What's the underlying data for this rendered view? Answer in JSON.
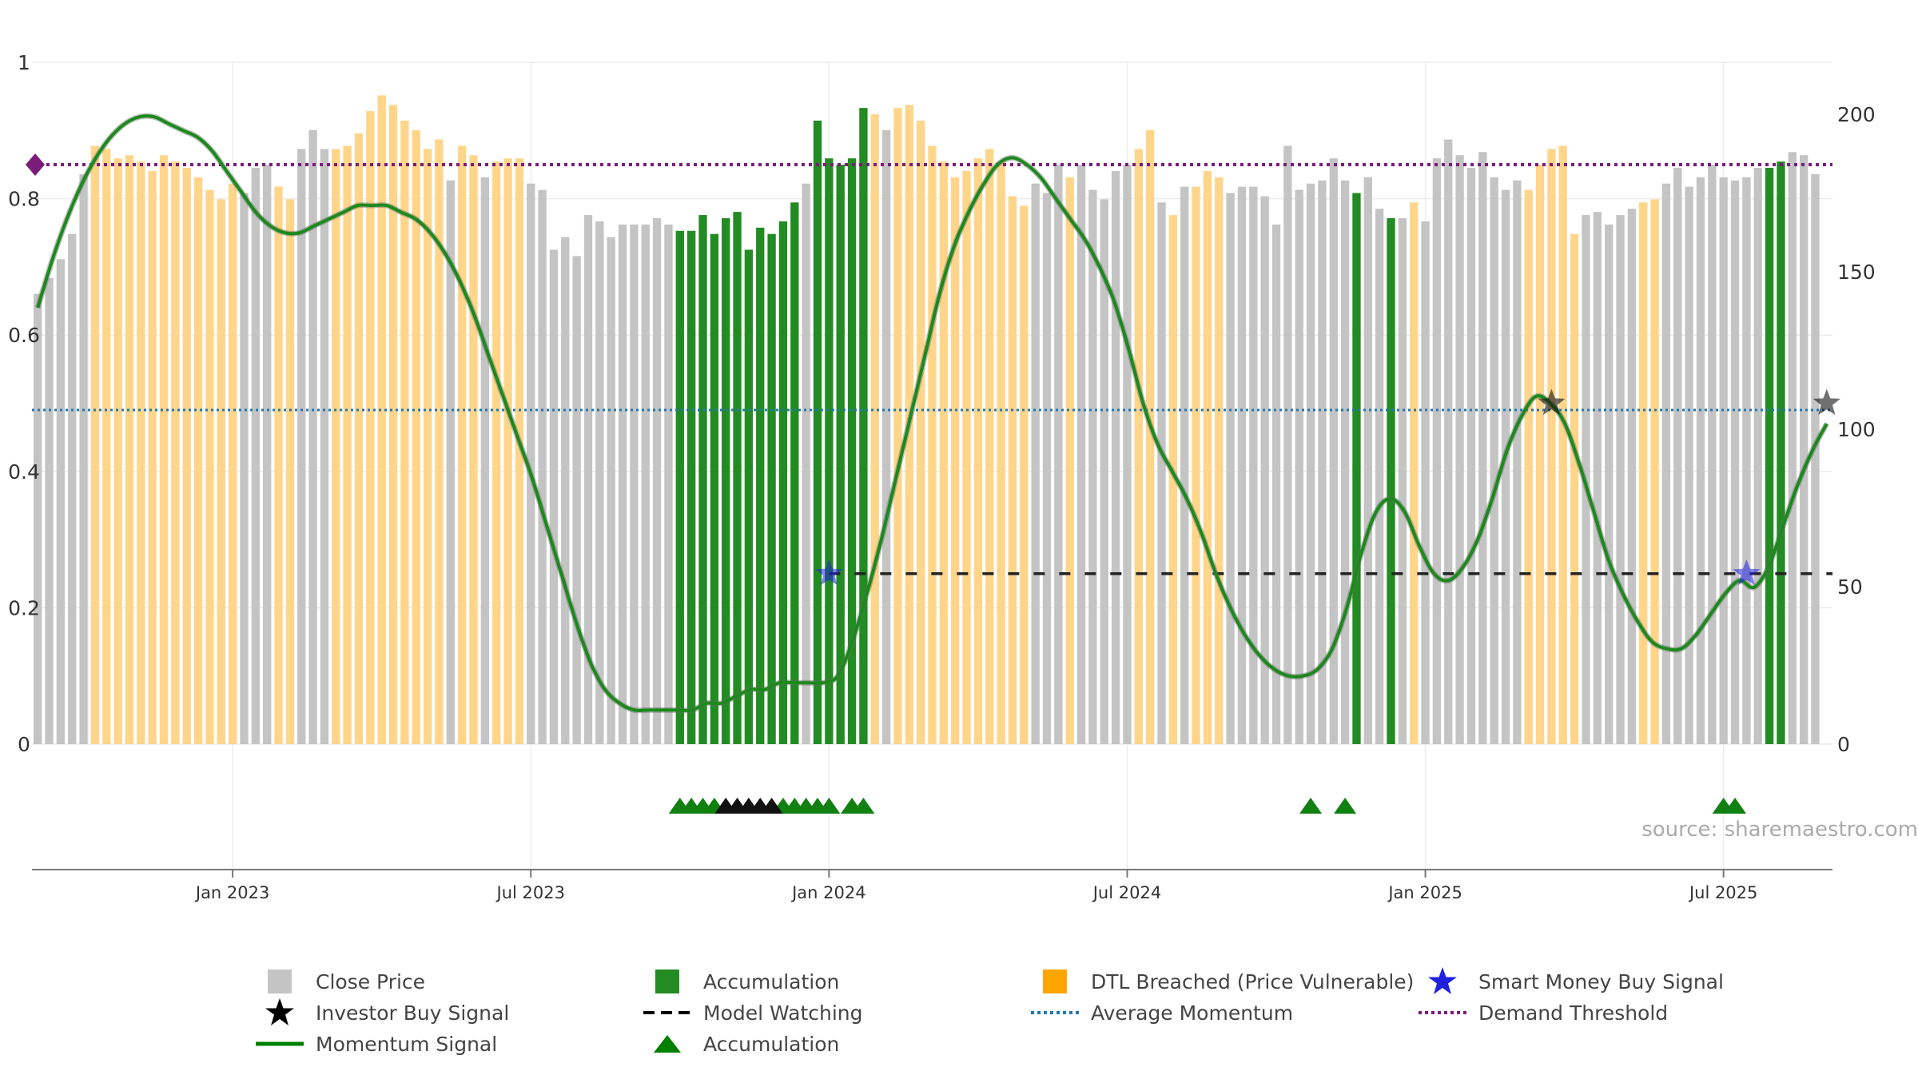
{
  "source_text": "source: sharemaestro.com",
  "colors": {
    "close": "#c4c4c4",
    "accumulation": "#228b22",
    "dtl": "#ffd58a",
    "momentum": "#1a8a1a",
    "momentum_shadow": "#6b6b6b",
    "average": "#1f77b4",
    "demand": "#7b1c7b",
    "watching": "#222222",
    "smart_money": "#2020e0",
    "investor": "#111111",
    "acc_marker": "#108010",
    "watch_marker": "#111111"
  },
  "legend": [
    {
      "label": "Close Price",
      "symbol": "square-gray"
    },
    {
      "label": "Accumulation",
      "symbol": "square-green"
    },
    {
      "label": "DTL Breached (Price Vulnerable)",
      "symbol": "square-orange"
    },
    {
      "label": "Smart Money Buy Signal",
      "symbol": "star-blue"
    },
    {
      "label": "Investor Buy Signal",
      "symbol": "star-black"
    },
    {
      "label": "Model Watching",
      "symbol": "dash-black"
    },
    {
      "label": "Average Momentum",
      "symbol": "dot-blue"
    },
    {
      "label": "Demand Threshold",
      "symbol": "dot-purple"
    },
    {
      "label": "Momentum Signal",
      "symbol": "line-green"
    },
    {
      "label": "Accumulation",
      "symbol": "triangle-green"
    }
  ],
  "chart_data": {
    "type": "bar",
    "left_axis": {
      "ticks": [
        "0",
        "0.2",
        "0.4",
        "0.6",
        "0.8",
        "1"
      ],
      "range": [
        0,
        1
      ]
    },
    "right_axis": {
      "ticks": [
        "0",
        "50",
        "100",
        "150",
        "200"
      ],
      "range": [
        0,
        200
      ]
    },
    "x_ticks": [
      "Jan 2023",
      "Jul 2023",
      "Jan 2024",
      "Jul 2024",
      "Jan 2025",
      "Jul 2025"
    ],
    "x_tick_weeks": [
      17,
      43,
      69,
      95,
      121,
      147
    ],
    "weeks": 157,
    "close": [
      143,
      148,
      154,
      162,
      181,
      190,
      189,
      186,
      187,
      185,
      182,
      187,
      185,
      183,
      180,
      176,
      173,
      178,
      175,
      183,
      184,
      177,
      173,
      189,
      195,
      189,
      189,
      190,
      194,
      201,
      206,
      203,
      198,
      195,
      189,
      192,
      179,
      190,
      187,
      180,
      185,
      186,
      186,
      178,
      176,
      157,
      161,
      155,
      168,
      166,
      161,
      165,
      165,
      165,
      167,
      165,
      163,
      163,
      168,
      162,
      167,
      169,
      157,
      164,
      162,
      166,
      172,
      178,
      198,
      186,
      184,
      186,
      202,
      200,
      195,
      202,
      203,
      198,
      190,
      185,
      180,
      182,
      186,
      189,
      185,
      174,
      171,
      178,
      175,
      184,
      180,
      184,
      176,
      173,
      182,
      184,
      189,
      195,
      172,
      168,
      177,
      177,
      182,
      180,
      175,
      177,
      177,
      174,
      165,
      190,
      176,
      178,
      179,
      186,
      179,
      175,
      180,
      170,
      167,
      167,
      172,
      166,
      186,
      192,
      187,
      183,
      188,
      180,
      176,
      179,
      176,
      184,
      189,
      190,
      162,
      168,
      169,
      165,
      168,
      170,
      172,
      173,
      178,
      183,
      177,
      180,
      184,
      180,
      179,
      180,
      183,
      183,
      185,
      188,
      187,
      181
    ],
    "bar_types": [
      "C",
      "C",
      "C",
      "C",
      "C",
      "D",
      "D",
      "D",
      "D",
      "D",
      "D",
      "D",
      "D",
      "D",
      "D",
      "D",
      "D",
      "D",
      "C",
      "C",
      "C",
      "D",
      "D",
      "C",
      "C",
      "C",
      "D",
      "D",
      "D",
      "D",
      "D",
      "D",
      "D",
      "D",
      "D",
      "D",
      "C",
      "D",
      "D",
      "C",
      "D",
      "D",
      "D",
      "C",
      "C",
      "C",
      "C",
      "C",
      "C",
      "C",
      "C",
      "C",
      "C",
      "C",
      "C",
      "C",
      "A",
      "A",
      "A",
      "A",
      "A",
      "A",
      "A",
      "A",
      "A",
      "A",
      "A",
      "C",
      "A",
      "A",
      "A",
      "A",
      "A",
      "D",
      "C",
      "D",
      "D",
      "D",
      "D",
      "D",
      "D",
      "D",
      "D",
      "D",
      "D",
      "D",
      "D",
      "C",
      "C",
      "C",
      "D",
      "C",
      "C",
      "C",
      "C",
      "C",
      "D",
      "D",
      "C",
      "D",
      "C",
      "D",
      "D",
      "D",
      "C",
      "C",
      "C",
      "C",
      "C",
      "C",
      "C",
      "C",
      "C",
      "C",
      "C",
      "A",
      "C",
      "C",
      "A",
      "C",
      "D",
      "C",
      "C",
      "C",
      "C",
      "C",
      "C",
      "C",
      "C",
      "C",
      "D",
      "D",
      "D",
      "D",
      "D",
      "C",
      "C",
      "C",
      "C",
      "C",
      "D",
      "D",
      "C",
      "C",
      "C",
      "C",
      "C",
      "C",
      "C",
      "C",
      "C",
      "A",
      "A",
      "C",
      "C",
      "C",
      "C",
      "C",
      "C",
      "D",
      "C"
    ],
    "momentum": [
      0.64,
      0.71,
      0.77,
      0.82,
      0.86,
      0.89,
      0.91,
      0.92,
      0.92,
      0.91,
      0.9,
      0.89,
      0.87,
      0.84,
      0.81,
      0.78,
      0.76,
      0.75,
      0.75,
      0.76,
      0.77,
      0.78,
      0.79,
      0.79,
      0.79,
      0.78,
      0.77,
      0.75,
      0.72,
      0.68,
      0.63,
      0.57,
      0.51,
      0.45,
      0.39,
      0.32,
      0.25,
      0.18,
      0.12,
      0.08,
      0.06,
      0.05,
      0.05,
      0.05,
      0.05,
      0.05,
      0.06,
      0.06,
      0.07,
      0.08,
      0.08,
      0.09,
      0.09,
      0.09,
      0.09,
      0.1,
      0.15,
      0.22,
      0.3,
      0.39,
      0.48,
      0.57,
      0.66,
      0.73,
      0.78,
      0.82,
      0.85,
      0.86,
      0.85,
      0.83,
      0.8,
      0.77,
      0.74,
      0.7,
      0.65,
      0.58,
      0.5,
      0.44,
      0.4,
      0.36,
      0.31,
      0.25,
      0.2,
      0.16,
      0.13,
      0.11,
      0.1,
      0.1,
      0.11,
      0.14,
      0.2,
      0.28,
      0.34,
      0.36,
      0.34,
      0.29,
      0.25,
      0.24,
      0.26,
      0.3,
      0.36,
      0.43,
      0.48,
      0.51,
      0.5,
      0.47,
      0.41,
      0.34,
      0.27,
      0.22,
      0.18,
      0.15,
      0.14,
      0.14,
      0.16,
      0.19,
      0.22,
      0.24,
      0.23,
      0.26,
      0.32,
      0.38,
      0.43,
      0.47
    ],
    "average_momentum": 0.49,
    "demand_threshold": 0.85,
    "model_watching_level": 0.25,
    "model_watching_from_week": 69,
    "smart_money_buy_weeks": [
      69,
      149
    ],
    "investor_buy_weeks": [
      132,
      157
    ],
    "accumulation_triangle_weeks": [
      56,
      57,
      58,
      59,
      65,
      66,
      67,
      68,
      69,
      71,
      72,
      147,
      148
    ],
    "watching_triangle_weeks": [
      60,
      61,
      62,
      63,
      64
    ],
    "momentum_weeks": [
      0,
      157
    ]
  }
}
